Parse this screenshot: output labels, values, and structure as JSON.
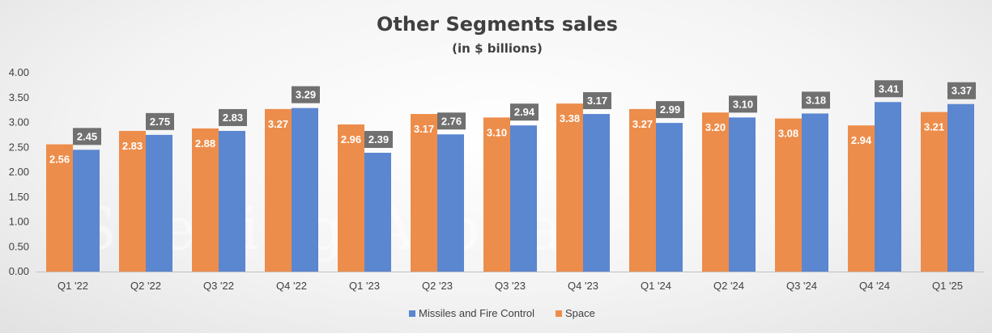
{
  "chart_data": {
    "type": "bar",
    "title": "Other Segments sales",
    "subtitle": "(in $ billions)",
    "categories": [
      "Q1 '22",
      "Q2 '22",
      "Q3 '22",
      "Q4 '22",
      "Q1 '23",
      "Q2 '23",
      "Q3 '23",
      "Q4 '23",
      "Q1 '24",
      "Q2 '24",
      "Q3 '24",
      "Q4 '24",
      "Q1 '25"
    ],
    "series": [
      {
        "name": "Space",
        "color": "#ED8D4B",
        "values": [
          2.56,
          2.83,
          2.88,
          3.27,
          2.96,
          3.17,
          3.1,
          3.38,
          3.27,
          3.2,
          3.08,
          2.94,
          3.21
        ]
      },
      {
        "name": "Missiles and Fire Control",
        "color": "#5B86D0",
        "values": [
          2.45,
          2.75,
          2.83,
          3.29,
          2.39,
          2.76,
          2.94,
          3.17,
          2.99,
          3.1,
          3.18,
          3.41,
          3.37
        ]
      }
    ],
    "ylim": [
      0,
      4
    ],
    "yticks": [
      "0.00",
      "0.50",
      "1.00",
      "1.50",
      "2.00",
      "2.50",
      "3.00",
      "3.50",
      "4.00"
    ],
    "legend_order": [
      "Missiles and Fire Control",
      "Space"
    ],
    "legend_position": "bottom",
    "label_box_color": "#707070",
    "grid": false,
    "watermark": "Seeking Alpha"
  }
}
